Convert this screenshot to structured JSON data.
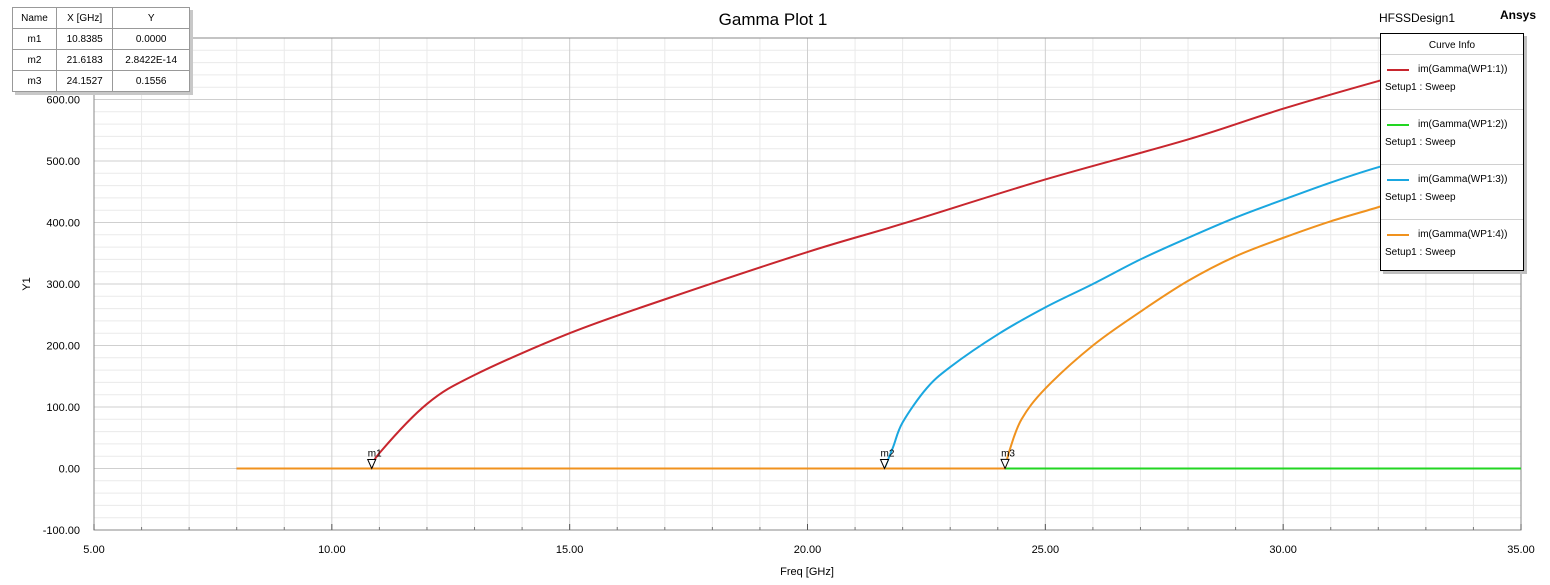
{
  "title": "Gamma Plot 1",
  "design_name": "HFSSDesign1",
  "brand": "Ansys",
  "marker_table": {
    "headers": [
      "Name",
      "X [GHz]",
      "Y"
    ],
    "rows": [
      [
        "m1",
        "10.8385",
        "0.0000"
      ],
      [
        "m2",
        "21.6183",
        "2.8422E-14"
      ],
      [
        "m3",
        "24.1527",
        "0.1556"
      ]
    ]
  },
  "legend": {
    "title": "Curve Info",
    "items": [
      {
        "name": "im(Gamma(WP1:1))",
        "sub": "Setup1 : Sweep",
        "color": "#c8262e"
      },
      {
        "name": "im(Gamma(WP1:2))",
        "sub": "Setup1 : Sweep",
        "color": "#22d622"
      },
      {
        "name": "im(Gamma(WP1:3))",
        "sub": "Setup1 : Sweep",
        "color": "#1aa7e0"
      },
      {
        "name": "im(Gamma(WP1:4))",
        "sub": "Setup1 : Sweep",
        "color": "#f0921e"
      }
    ]
  },
  "chart_data": {
    "type": "line",
    "title": "Gamma Plot 1",
    "xlabel": "Freq [GHz]",
    "ylabel": "Y1",
    "xlim": [
      5,
      35
    ],
    "ylim": [
      -100,
      700
    ],
    "x_ticks": [
      "5.00",
      "10.00",
      "15.00",
      "20.00",
      "25.00",
      "30.00",
      "35.00"
    ],
    "y_ticks": [
      "-100.00",
      "0.00",
      "100.00",
      "200.00",
      "300.00",
      "400.00",
      "500.00",
      "600.00"
    ],
    "grid": true,
    "legend_position": "top-right",
    "x_range": [
      8,
      35
    ],
    "series": [
      {
        "name": "im(Gamma(WP1:1))",
        "color": "#c8262e",
        "cutoff": 10.8385,
        "points": [
          [
            8,
            0
          ],
          [
            10.8385,
            0
          ],
          [
            11,
            25
          ],
          [
            12,
            105
          ],
          [
            13,
            152
          ],
          [
            15,
            220
          ],
          [
            17,
            275
          ],
          [
            20,
            352
          ],
          [
            22,
            398
          ],
          [
            25,
            470
          ],
          [
            28,
            535
          ],
          [
            30,
            585
          ],
          [
            32,
            630
          ],
          [
            33,
            650
          ],
          [
            35,
            690
          ]
        ]
      },
      {
        "name": "im(Gamma(WP1:2))",
        "color": "#22d622",
        "points": [
          [
            8,
            0
          ],
          [
            35,
            0
          ]
        ]
      },
      {
        "name": "im(Gamma(WP1:3))",
        "color": "#1aa7e0",
        "cutoff": 21.6183,
        "points": [
          [
            21.6183,
            0
          ],
          [
            21.8,
            35
          ],
          [
            22,
            75
          ],
          [
            22.5,
            130
          ],
          [
            23,
            165
          ],
          [
            24,
            218
          ],
          [
            25,
            262
          ],
          [
            26,
            300
          ],
          [
            27,
            340
          ],
          [
            28,
            375
          ],
          [
            29,
            408
          ],
          [
            30,
            437
          ],
          [
            31,
            465
          ],
          [
            32,
            490
          ],
          [
            33,
            510
          ],
          [
            35,
            550
          ]
        ]
      },
      {
        "name": "im(Gamma(WP1:4))",
        "color": "#f0921e",
        "cutoff": 24.1527,
        "points": [
          [
            8,
            0
          ],
          [
            24.1527,
            0
          ],
          [
            24.25,
            30
          ],
          [
            24.5,
            80
          ],
          [
            25,
            130
          ],
          [
            26,
            200
          ],
          [
            27,
            255
          ],
          [
            28,
            305
          ],
          [
            29,
            345
          ],
          [
            30,
            375
          ],
          [
            31,
            402
          ],
          [
            32,
            425
          ],
          [
            33,
            450
          ],
          [
            35,
            490
          ]
        ]
      }
    ],
    "markers": [
      {
        "label": "m1",
        "x": 10.8385,
        "y": 0
      },
      {
        "label": "m2",
        "x": 21.6183,
        "y": 0
      },
      {
        "label": "m3",
        "x": 24.1527,
        "y": 0.1556
      }
    ]
  }
}
